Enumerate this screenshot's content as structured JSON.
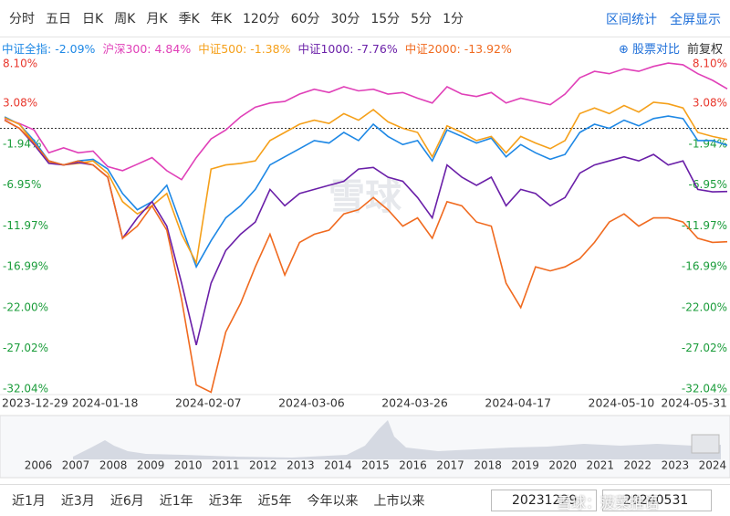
{
  "toolbar": {
    "periods": [
      "分时",
      "五日",
      "日K",
      "周K",
      "月K",
      "季K",
      "年K",
      "120分",
      "60分",
      "30分",
      "15分",
      "5分",
      "1分"
    ],
    "actions": [
      "区间统计",
      "全屏显示"
    ]
  },
  "compare": {
    "button": "股票对比",
    "adjust": "前复权"
  },
  "chart_data": {
    "type": "line",
    "legend_separator": ": ",
    "categories": [
      "2023-12-29",
      null,
      null,
      null,
      null,
      null,
      null,
      "2024-01-18",
      null,
      null,
      null,
      null,
      null,
      null,
      "2024-02-07",
      null,
      null,
      null,
      null,
      null,
      null,
      "2024-03-06",
      null,
      null,
      null,
      null,
      null,
      null,
      "2024-03-26",
      null,
      null,
      null,
      null,
      null,
      null,
      "2024-04-17",
      null,
      null,
      null,
      null,
      null,
      null,
      "2024-05-10",
      null,
      null,
      null,
      null,
      null,
      null,
      "2024-05-31"
    ],
    "series": [
      {
        "name": "中证全指",
        "value_label": "-2.09%",
        "color": "#1e88e5",
        "values": [
          1.4,
          0.5,
          -1.5,
          -4,
          -4.5,
          -4,
          -3.8,
          -5,
          -8,
          -10,
          -9,
          -7,
          -12,
          -17,
          -13.8,
          -11,
          -9.5,
          -7.5,
          -4.5,
          -3.5,
          -2.5,
          -1.5,
          -1.8,
          -0.5,
          -1.5,
          0.5,
          -1,
          -2,
          -1.5,
          -4,
          -0.2,
          -1,
          -1.8,
          -1.2,
          -3.5,
          -2,
          -3,
          -3.8,
          -3.2,
          -0.5,
          0.5,
          0,
          1,
          0.3,
          1.2,
          1.5,
          1.2,
          -1.5,
          -1.5,
          -2.09
        ]
      },
      {
        "name": "沪深300",
        "value_label": "4.84%",
        "color": "#e040b8",
        "values": [
          1.2,
          0.6,
          -0.2,
          -3,
          -2.4,
          -3,
          -2.8,
          -4.7,
          -5.2,
          -4.4,
          -3.6,
          -5.2,
          -6.3,
          -3.6,
          -1.3,
          -0.2,
          1.4,
          2.6,
          3.1,
          3.3,
          4.2,
          4.8,
          4.4,
          5.1,
          4.6,
          4.8,
          4.2,
          4.4,
          3.7,
          3.1,
          5.1,
          4.2,
          3.9,
          4.4,
          3.1,
          3.7,
          3.3,
          2.9,
          4.2,
          6.2,
          7,
          6.7,
          7.3,
          7,
          7.6,
          8,
          7.8,
          6.7,
          5.9,
          4.84
        ]
      },
      {
        "name": "中证500",
        "value_label": "-1.38%",
        "color": "#f5a01a",
        "values": [
          1.3,
          0.5,
          -1.8,
          -4.2,
          -4.5,
          -4.3,
          -4,
          -5.5,
          -9,
          -10.5,
          -9.5,
          -8,
          -13,
          -16.5,
          -5,
          -4.5,
          -4.3,
          -4,
          -1.5,
          -0.5,
          0.5,
          1,
          0.6,
          1.8,
          1,
          2.3,
          0.8,
          0,
          -0.5,
          -3.5,
          0.3,
          -0.5,
          -1.5,
          -1,
          -3,
          -1,
          -1.8,
          -2.5,
          -1.5,
          1.8,
          2.5,
          1.8,
          2.8,
          2,
          3.2,
          3,
          2.5,
          -0.5,
          -1,
          -1.38
        ]
      },
      {
        "name": "中证1000",
        "value_label": "-7.76%",
        "color": "#6a1fa8",
        "values": [
          1,
          0,
          -2,
          -4.3,
          -4.5,
          -4.2,
          -4.5,
          -6,
          -13.5,
          -11,
          -9,
          -12,
          -19,
          -26.6,
          -19,
          -15,
          -13,
          -11.5,
          -7.5,
          -9.5,
          -8,
          -7.5,
          -7,
          -6.5,
          -5,
          -4.8,
          -6,
          -6.5,
          -8.5,
          -11,
          -4.5,
          -6,
          -7,
          -6,
          -9.5,
          -7.5,
          -8,
          -9.5,
          -8.5,
          -5.5,
          -4.5,
          -4,
          -3.5,
          -4,
          -3.2,
          -4.5,
          -4,
          -7.5,
          -7.8,
          -7.76
        ]
      },
      {
        "name": "中证2000",
        "value_label": "-13.92%",
        "color": "#f06a1f",
        "values": [
          1,
          0,
          -1.8,
          -4,
          -4.5,
          -4,
          -4.5,
          -6,
          -13.5,
          -12,
          -9.5,
          -12.5,
          -21,
          -31.5,
          -32.4,
          -25,
          -21.5,
          -17,
          -13,
          -18,
          -14,
          -13,
          -12.5,
          -10.5,
          -10,
          -8.5,
          -10,
          -12,
          -11,
          -13.5,
          -9,
          -9.5,
          -11.5,
          -12,
          -19,
          -22,
          -17,
          -17.5,
          -17,
          -16,
          -14,
          -11.5,
          -10.5,
          -12,
          -11,
          -11,
          -11.5,
          -13.5,
          -14,
          -13.92
        ]
      }
    ],
    "ylim": [
      -32.9,
      8.8
    ],
    "yticks": [
      {
        "value": 8.1,
        "label": "8.10%"
      },
      {
        "value": 3.08,
        "label": "3.08%"
      },
      {
        "value": -1.94,
        "label": "-1.94%"
      },
      {
        "value": -6.95,
        "label": "-6.95%"
      },
      {
        "value": -11.97,
        "label": "-11.97%"
      },
      {
        "value": -16.99,
        "label": "-16.99%"
      },
      {
        "value": -22.0,
        "label": "-22.00%"
      },
      {
        "value": -27.02,
        "label": "-27.02%"
      },
      {
        "value": -32.04,
        "label": "-32.04%"
      }
    ],
    "tick_colors": {
      "positive": "#e8372c",
      "negative": "#1a9c3a"
    },
    "grid": false,
    "zero_line": true,
    "watermark": "雪球"
  },
  "overview": {
    "years": [
      "2006",
      "2007",
      "2008",
      "2009",
      "2010",
      "2011",
      "2012",
      "2013",
      "2014",
      "2015",
      "2016",
      "2017",
      "2018",
      "2019",
      "2020",
      "2021",
      "2022",
      "2023",
      "2024"
    ]
  },
  "ranges": [
    "近1月",
    "近3月",
    "近6月",
    "近1年",
    "近3年",
    "近5年",
    "今年以来",
    "上市以来"
  ],
  "dates": {
    "start": "20231229",
    "end": "20240531"
  },
  "footer_watermark": "雪球：菠菜推语"
}
